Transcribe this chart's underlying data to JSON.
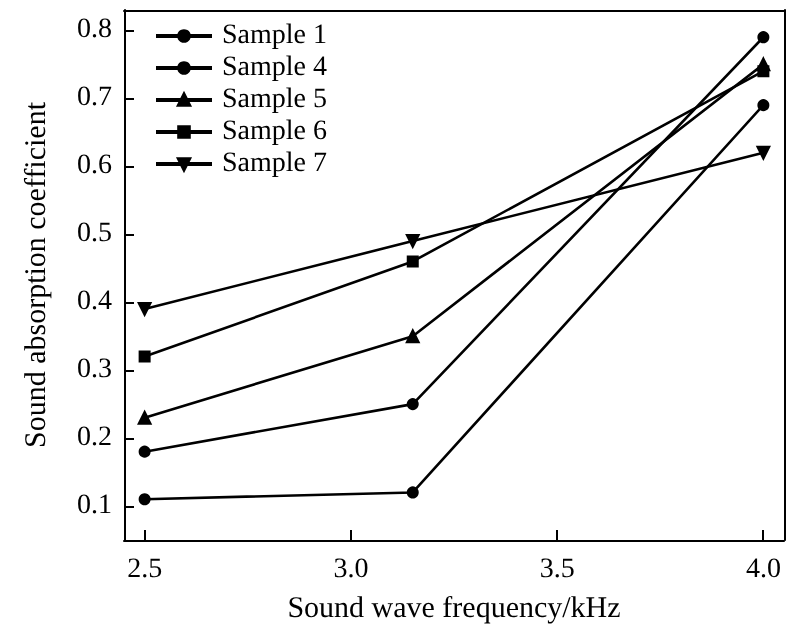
{
  "chart_data": {
    "type": "line",
    "xlabel": "Sound wave frequency/kHz",
    "ylabel": "Sound absorption coefficient",
    "x": [
      2.5,
      3.15,
      4.0
    ],
    "series": [
      {
        "name": "Sample 1",
        "color": "#000000",
        "marker": "circle",
        "values": [
          0.11,
          0.12,
          0.69
        ]
      },
      {
        "name": "Sample 4",
        "color": "#000000",
        "marker": "circle",
        "values": [
          0.18,
          0.25,
          0.79
        ]
      },
      {
        "name": "Sample 5",
        "color": "#000000",
        "marker": "triangle",
        "values": [
          0.23,
          0.35,
          0.75
        ]
      },
      {
        "name": "Sample 6",
        "color": "#000000",
        "marker": "square",
        "values": [
          0.32,
          0.46,
          0.74
        ]
      },
      {
        "name": "Sample 7",
        "color": "#000000",
        "marker": "triangle_down",
        "values": [
          0.39,
          0.49,
          0.62
        ]
      }
    ],
    "xlim": [
      2.45,
      4.05
    ],
    "xticks": [
      2.5,
      {
        "value": 3,
        "label": "3.0"
      },
      3.5,
      {
        "value": 4,
        "label": "4.0"
      }
    ],
    "ylim": [
      0.05,
      0.83
    ],
    "yticks": [
      0.1,
      0.2,
      0.3,
      0.4,
      0.5,
      0.6,
      0.7,
      0.8
    ],
    "legend": "top left",
    "grid": false,
    "line_style": "solid"
  }
}
